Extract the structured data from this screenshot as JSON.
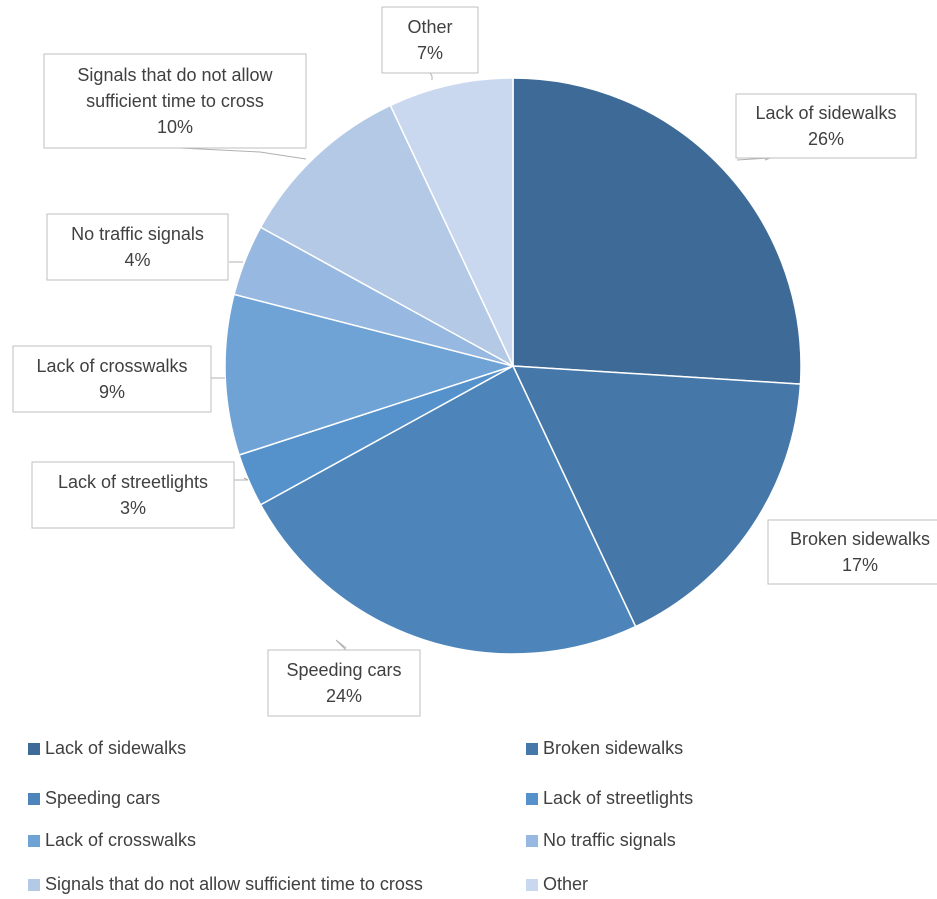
{
  "chart_data": {
    "type": "pie",
    "title": "",
    "categories": [
      "Lack of sidewalks",
      "Broken sidewalks",
      "Speeding cars",
      "Lack of streetlights",
      "Lack of crosswalks",
      "No traffic signals",
      "Signals that do not allow sufficient time to cross",
      "Other"
    ],
    "values": [
      26,
      17,
      24,
      3,
      9,
      4,
      10,
      7
    ],
    "data_labels": [
      "26%",
      "17%",
      "24%",
      "3%",
      "9%",
      "4%",
      "10%",
      "7%"
    ],
    "colors": [
      "#3d6a96",
      "#4577a8",
      "#4d85bb",
      "#5592cc",
      "#6fa3d6",
      "#97b8e0",
      "#b3c9e6",
      "#c9d8ee"
    ],
    "legend_position": "bottom"
  }
}
